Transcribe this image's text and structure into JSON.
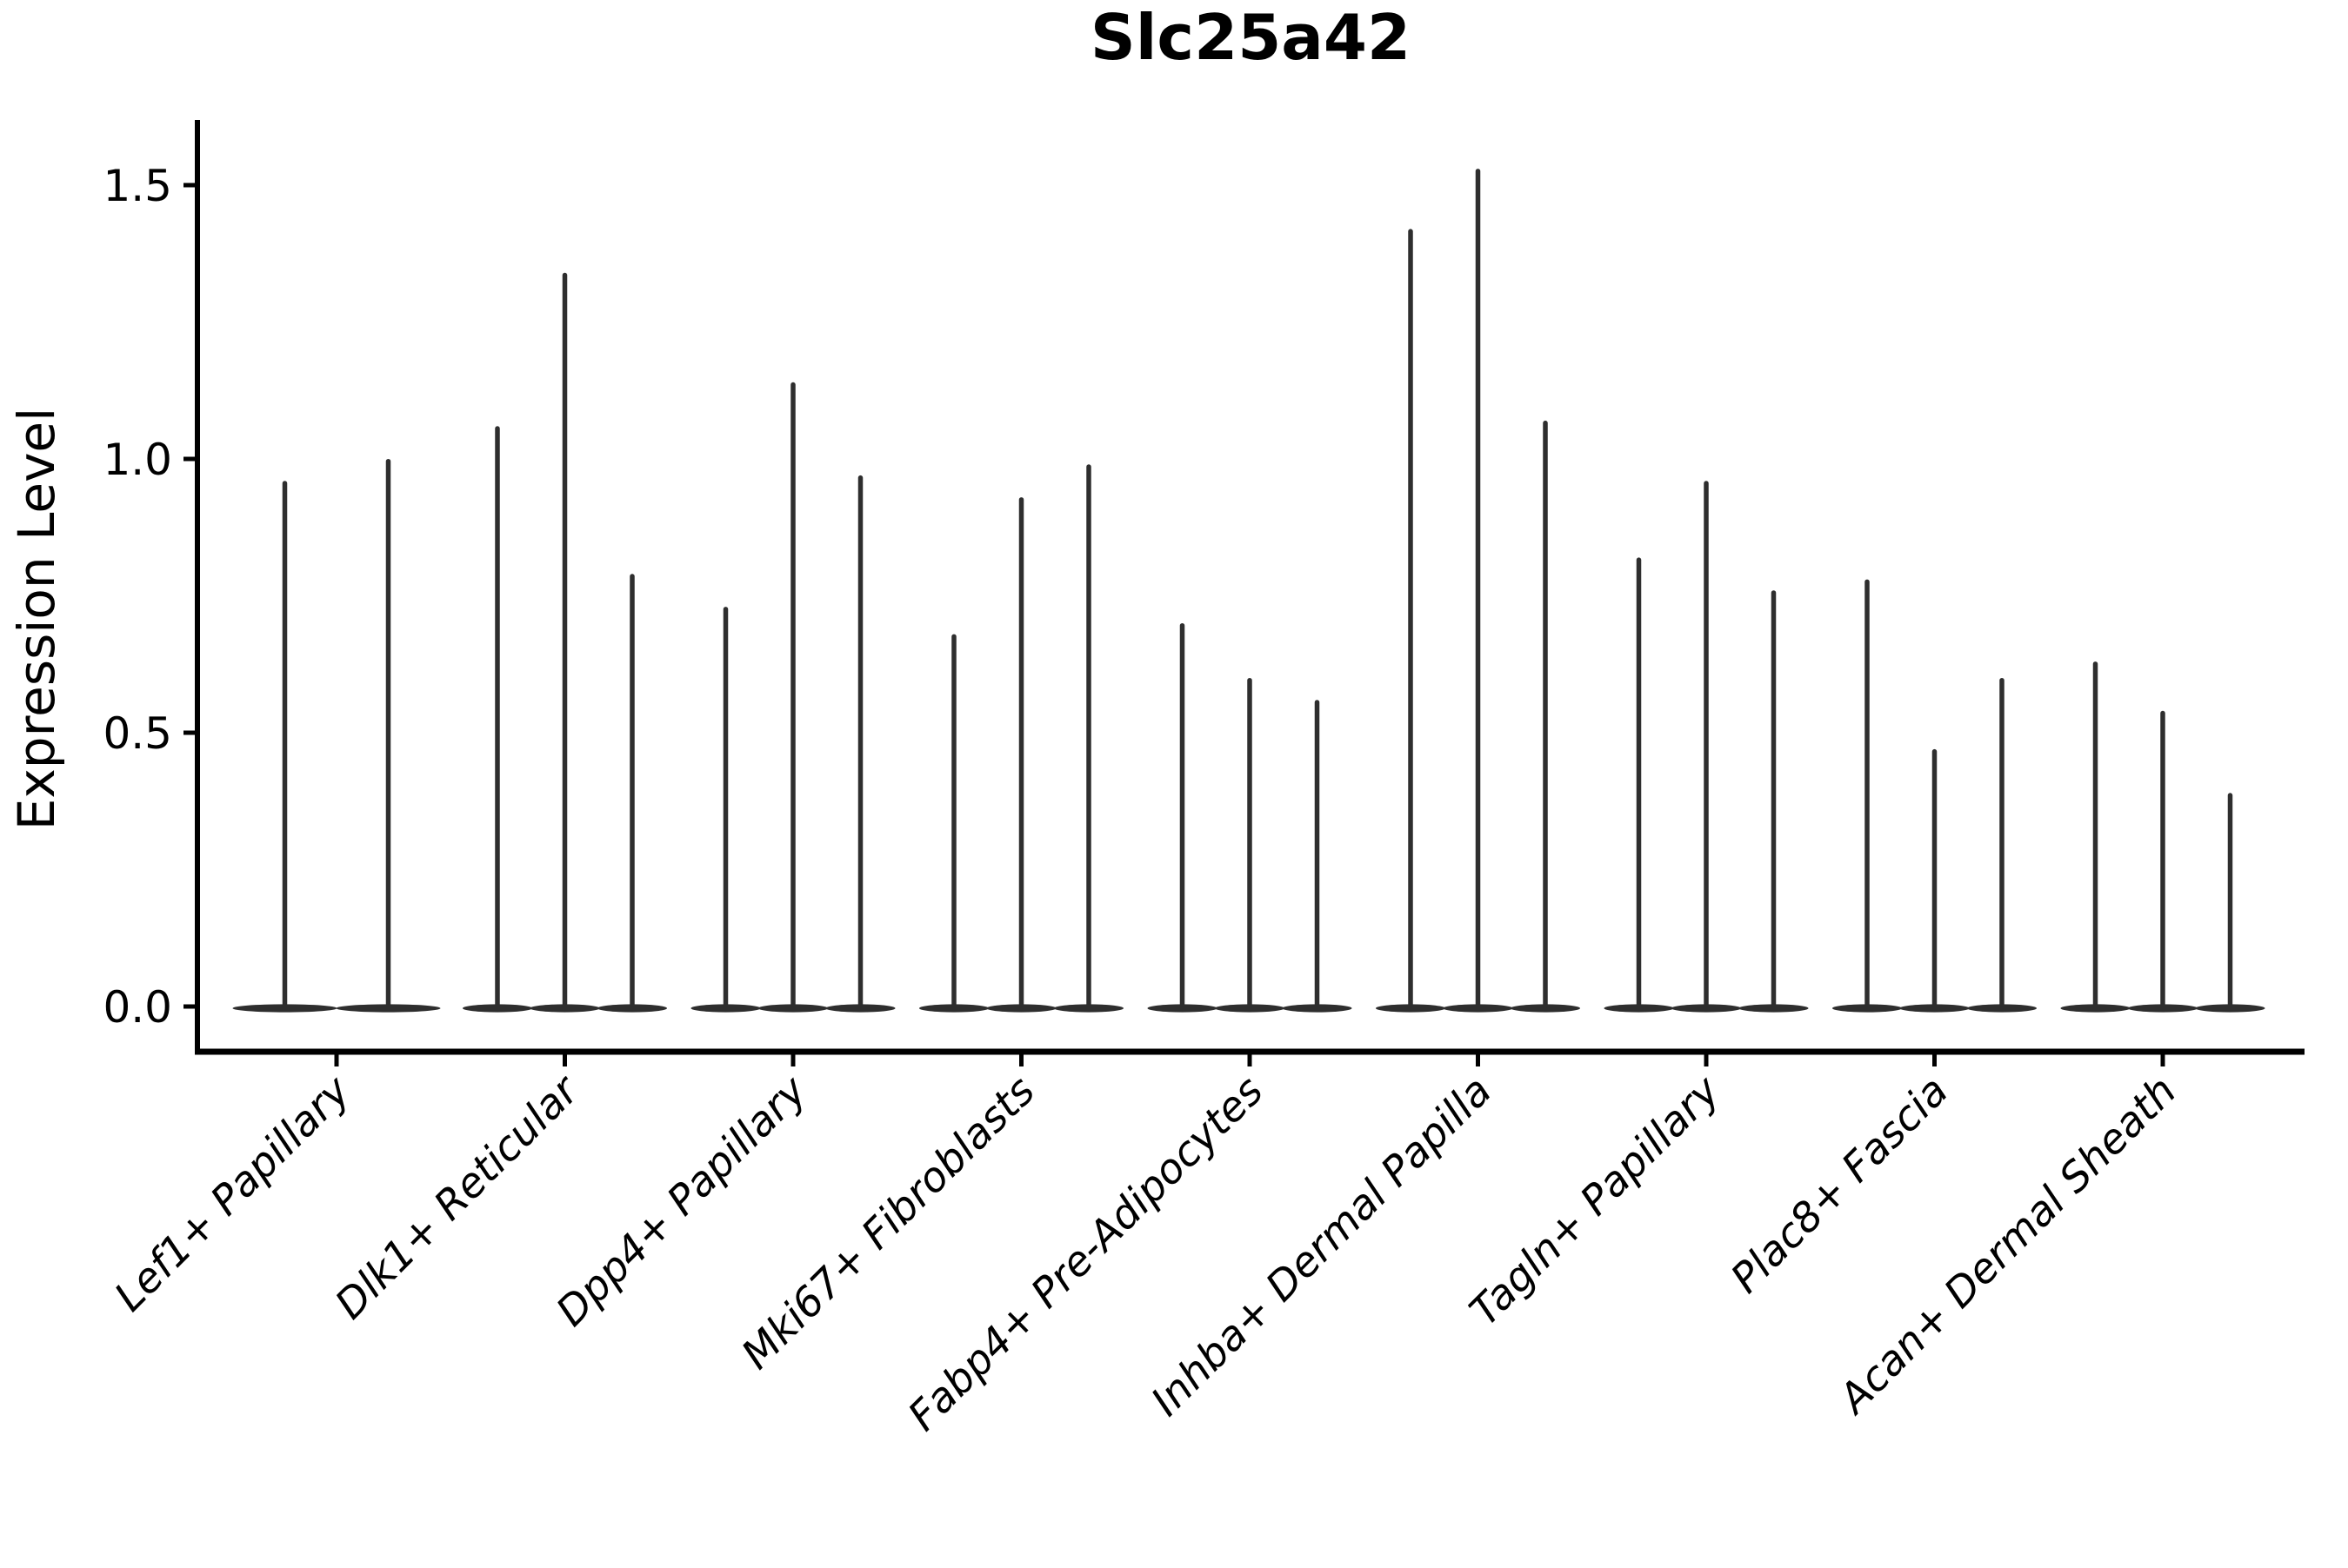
{
  "title": "Slc25a42",
  "y_axis": {
    "label": "Expression Level",
    "tick_labels": [
      "0.0",
      "0.5",
      "1.0",
      "1.5"
    ],
    "tick_values": [
      0.0,
      0.5,
      1.0,
      1.5
    ]
  },
  "chart_data": {
    "type": "violin",
    "title": "Slc25a42",
    "xlabel": "",
    "ylabel": "Expression Level",
    "ylim": [
      0,
      1.6
    ],
    "grid": false,
    "legend": false,
    "categories": [
      "Lef1+ Papillary",
      "Dlk1+ Reticular",
      "Dpp4+ Papillary",
      "Mki67+ Fibroblasts",
      "Fabp4+ Pre-Adipocytes",
      "Inhba+ Dermal Papilla",
      "Tagln+ Papillary",
      "Plac8+ Fascia",
      "Acan+ Dermal Sheath"
    ],
    "violin_spike_maxima_per_category": [
      [
        0.96,
        1.0
      ],
      [
        1.06,
        1.34,
        0.79
      ],
      [
        0.73,
        1.14,
        0.97
      ],
      [
        0.68,
        0.93,
        0.99
      ],
      [
        0.7,
        0.6,
        0.56
      ],
      [
        1.42,
        1.53,
        1.07
      ],
      [
        0.82,
        0.96,
        0.76
      ],
      [
        0.78,
        0.47,
        0.6
      ],
      [
        0.63,
        0.54,
        0.39
      ]
    ],
    "description": "Seurat-style violin plot; density concentrated at 0 with thin spikes to each maximum"
  },
  "colors": {
    "violin": "#2e2e2e",
    "axis": "#000000",
    "text": "#000000",
    "background": "#ffffff"
  }
}
